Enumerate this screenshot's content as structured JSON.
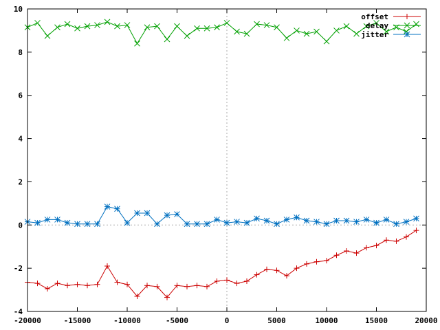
{
  "chart_data": {
    "type": "line",
    "title": "",
    "xlabel": "",
    "ylabel": "",
    "xlim": [
      -20000,
      20000
    ],
    "ylim": [
      -4,
      10
    ],
    "x_ticks": [
      -20000,
      -15000,
      -10000,
      -5000,
      0,
      5000,
      10000,
      15000,
      20000
    ],
    "y_ticks": [
      -4,
      -2,
      0,
      2,
      4,
      6,
      8,
      10
    ],
    "x_tick_labels": [
      "-20000",
      "-15000",
      "-10000",
      "-5000",
      "0",
      "5000",
      "10000",
      "15000",
      "20000"
    ],
    "y_tick_labels": [
      "-4",
      "-2",
      "0",
      "2",
      "4",
      "6",
      "8",
      "10"
    ],
    "grid": false,
    "zero_lines": true,
    "legend_position": "top-right",
    "series": [
      {
        "name": "offset",
        "color": "#cc0000",
        "marker": "plus",
        "points": [
          [
            -20000,
            -2.65
          ],
          [
            -19000,
            -2.7
          ],
          [
            -18000,
            -2.95
          ],
          [
            -17000,
            -2.7
          ],
          [
            -16000,
            -2.8
          ],
          [
            -15000,
            -2.75
          ],
          [
            -14000,
            -2.8
          ],
          [
            -13000,
            -2.75
          ],
          [
            -12000,
            -1.9
          ],
          [
            -11000,
            -2.65
          ],
          [
            -10000,
            -2.75
          ],
          [
            -9000,
            -3.3
          ],
          [
            -8000,
            -2.8
          ],
          [
            -7000,
            -2.85
          ],
          [
            -6000,
            -3.35
          ],
          [
            -5000,
            -2.8
          ],
          [
            -4000,
            -2.85
          ],
          [
            -3000,
            -2.8
          ],
          [
            -2000,
            -2.85
          ],
          [
            -1000,
            -2.6
          ],
          [
            0,
            -2.55
          ],
          [
            1000,
            -2.7
          ],
          [
            2000,
            -2.6
          ],
          [
            3000,
            -2.3
          ],
          [
            4000,
            -2.05
          ],
          [
            5000,
            -2.1
          ],
          [
            6000,
            -2.35
          ],
          [
            7000,
            -2.0
          ],
          [
            8000,
            -1.8
          ],
          [
            9000,
            -1.7
          ],
          [
            10000,
            -1.65
          ],
          [
            11000,
            -1.4
          ],
          [
            12000,
            -1.2
          ],
          [
            13000,
            -1.3
          ],
          [
            14000,
            -1.05
          ],
          [
            15000,
            -0.95
          ],
          [
            16000,
            -0.7
          ],
          [
            17000,
            -0.75
          ],
          [
            18000,
            -0.55
          ],
          [
            19000,
            -0.25
          ]
        ]
      },
      {
        "name": "delay",
        "color": "#00a000",
        "marker": "cross",
        "points": [
          [
            -20000,
            9.15
          ],
          [
            -19000,
            9.35
          ],
          [
            -18000,
            8.75
          ],
          [
            -17000,
            9.15
          ],
          [
            -16000,
            9.3
          ],
          [
            -15000,
            9.1
          ],
          [
            -14000,
            9.2
          ],
          [
            -13000,
            9.25
          ],
          [
            -12000,
            9.4
          ],
          [
            -11000,
            9.2
          ],
          [
            -10000,
            9.25
          ],
          [
            -9000,
            8.4
          ],
          [
            -8000,
            9.15
          ],
          [
            -7000,
            9.2
          ],
          [
            -6000,
            8.6
          ],
          [
            -5000,
            9.2
          ],
          [
            -4000,
            8.75
          ],
          [
            -3000,
            9.1
          ],
          [
            -2000,
            9.1
          ],
          [
            -1000,
            9.15
          ],
          [
            0,
            9.35
          ],
          [
            1000,
            8.95
          ],
          [
            2000,
            8.85
          ],
          [
            3000,
            9.3
          ],
          [
            4000,
            9.25
          ],
          [
            5000,
            9.15
          ],
          [
            6000,
            8.65
          ],
          [
            7000,
            9.0
          ],
          [
            8000,
            8.85
          ],
          [
            9000,
            8.95
          ],
          [
            10000,
            8.5
          ],
          [
            11000,
            9.0
          ],
          [
            12000,
            9.2
          ],
          [
            13000,
            8.85
          ],
          [
            14000,
            9.2
          ],
          [
            15000,
            9.35
          ],
          [
            16000,
            8.95
          ],
          [
            17000,
            9.15
          ],
          [
            18000,
            8.95
          ],
          [
            19000,
            9.3
          ]
        ]
      },
      {
        "name": "jitter",
        "color": "#0070c0",
        "marker": "star",
        "points": [
          [
            -20000,
            0.15
          ],
          [
            -19000,
            0.1
          ],
          [
            -18000,
            0.25
          ],
          [
            -17000,
            0.25
          ],
          [
            -16000,
            0.1
          ],
          [
            -15000,
            0.05
          ],
          [
            -14000,
            0.05
          ],
          [
            -13000,
            0.05
          ],
          [
            -12000,
            0.85
          ],
          [
            -11000,
            0.75
          ],
          [
            -10000,
            0.1
          ],
          [
            -9000,
            0.55
          ],
          [
            -8000,
            0.55
          ],
          [
            -7000,
            0.05
          ],
          [
            -6000,
            0.45
          ],
          [
            -5000,
            0.5
          ],
          [
            -4000,
            0.05
          ],
          [
            -3000,
            0.05
          ],
          [
            -2000,
            0.05
          ],
          [
            -1000,
            0.25
          ],
          [
            0,
            0.1
          ],
          [
            1000,
            0.15
          ],
          [
            2000,
            0.1
          ],
          [
            3000,
            0.3
          ],
          [
            4000,
            0.2
          ],
          [
            5000,
            0.05
          ],
          [
            6000,
            0.25
          ],
          [
            7000,
            0.35
          ],
          [
            8000,
            0.2
          ],
          [
            9000,
            0.15
          ],
          [
            10000,
            0.05
          ],
          [
            11000,
            0.2
          ],
          [
            12000,
            0.2
          ],
          [
            13000,
            0.15
          ],
          [
            14000,
            0.25
          ],
          [
            15000,
            0.1
          ],
          [
            16000,
            0.25
          ],
          [
            17000,
            0.05
          ],
          [
            18000,
            0.15
          ],
          [
            19000,
            0.3
          ]
        ]
      }
    ]
  }
}
